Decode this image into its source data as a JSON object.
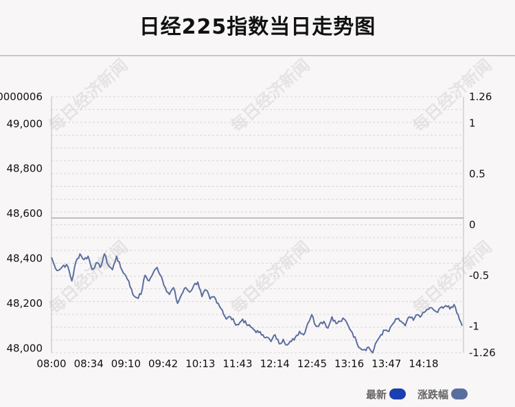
{
  "title": "日经225指数当日走势图",
  "watermark": "每日经济新闻",
  "legend": {
    "latest_label": "最新",
    "change_label": "涨跌幅",
    "latest_color": "#1a3fb0",
    "change_color": "#5a6e9e"
  },
  "chart_data": {
    "type": "line",
    "title": "日经225指数当日走势图",
    "xlabel": "",
    "ylabel": "",
    "x_ticks": [
      "08:00",
      "08:34",
      "09:10",
      "09:42",
      "10:13",
      "11:43",
      "12:14",
      "12:45",
      "13:16",
      "13:47",
      "14:18"
    ],
    "y_ticks": [
      48000,
      48200,
      48400,
      48600,
      48800,
      49000
    ],
    "y_top_label": "0000006",
    "ylim": [
      47980,
      49120
    ],
    "y2_ticks": [
      "1.26",
      "1",
      "0.5",
      "0",
      "-0.5",
      "-1",
      "-1.26"
    ],
    "y2lim": [
      -1.26,
      1.26
    ],
    "baseline_value": 48580,
    "line_color": "#5a6e9e",
    "grid": true,
    "series": [
      {
        "values": [
          48405,
          48355,
          48350,
          48370,
          48365,
          48300,
          48385,
          48420,
          48395,
          48410,
          48350,
          48380,
          48360,
          48420,
          48370,
          48350,
          48410,
          48360,
          48330,
          48300,
          48240,
          48225,
          48240,
          48325,
          48300,
          48335,
          48360,
          48320,
          48270,
          48240,
          48270,
          48200,
          48240,
          48270,
          48250,
          48280,
          48295,
          48230,
          48260,
          48220,
          48230,
          48200,
          48170,
          48130,
          48140,
          48115,
          48105,
          48130,
          48105,
          48095,
          48080,
          48070,
          48060,
          48050,
          48030,
          48060,
          48020,
          48040,
          48015,
          48030,
          48050,
          48075,
          48060,
          48110,
          48150,
          48100,
          48110,
          48120,
          48090,
          48140,
          48110,
          48120,
          48130,
          48100,
          48070,
          48030,
          48000,
          47995,
          48005,
          47980,
          48030,
          48060,
          48080,
          48075,
          48110,
          48130,
          48120,
          48100,
          48140,
          48125,
          48150,
          48145,
          48165,
          48180,
          48170,
          48160,
          48185,
          48190,
          48175,
          48195,
          48150,
          48100
        ]
      }
    ]
  }
}
